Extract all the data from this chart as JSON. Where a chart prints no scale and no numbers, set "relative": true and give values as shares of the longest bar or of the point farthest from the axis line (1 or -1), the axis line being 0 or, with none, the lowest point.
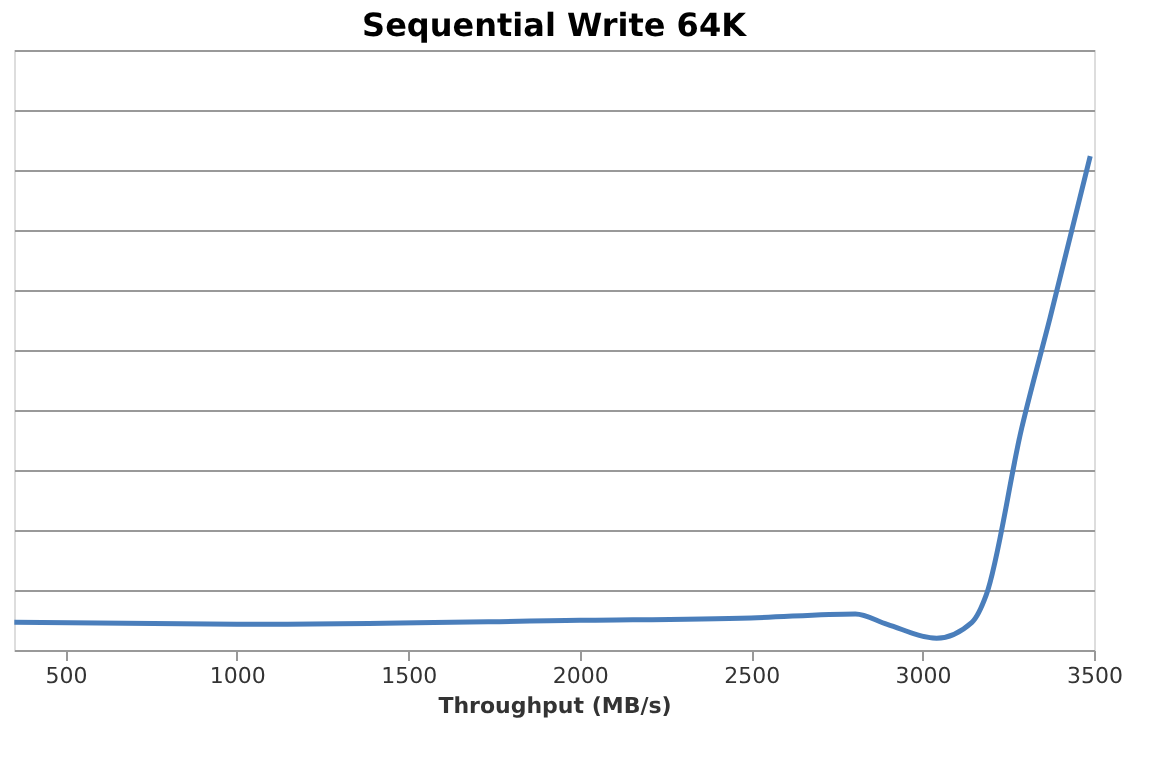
{
  "chart_data": {
    "type": "line",
    "title": "Sequential Write 64K",
    "xlabel": "Throughput (MB/s)",
    "relative": true,
    "xlim": [
      350,
      3500
    ],
    "xticks": [
      500,
      1000,
      1500,
      2000,
      2500,
      3000,
      3500
    ],
    "grid": "y",
    "series": [
      {
        "color": "#4a7ebb",
        "x": [
          351,
          1000,
          2000,
          2500,
          2804,
          2897,
          3041,
          3144,
          3186,
          3289,
          3372,
          3489
        ],
        "values": [
          0.056,
          0.052,
          0.06,
          0.065,
          0.073,
          0.052,
          0.024,
          0.056,
          0.112,
          0.449,
          0.673,
          1
        ]
      }
    ]
  }
}
